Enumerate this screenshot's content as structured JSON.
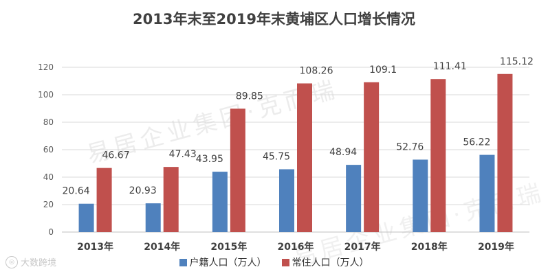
{
  "chart_data": {
    "type": "bar",
    "title": "2013年末至2019年末黄埔区人口增长情况",
    "categories": [
      "2013年",
      "2014年",
      "2015年",
      "2016年",
      "2017年",
      "2018年",
      "2019年"
    ],
    "series": [
      {
        "name": "户籍人口（万人）",
        "values": [
          20.64,
          20.93,
          43.95,
          45.75,
          48.94,
          52.76,
          56.22
        ],
        "color": "#4f81bd"
      },
      {
        "name": "常住人口（万人）",
        "values": [
          46.67,
          47.43,
          89.85,
          108.26,
          109.1,
          111.41,
          115.12
        ],
        "color": "#c0504d"
      }
    ],
    "value_labels": [
      [
        "20.64",
        "20.93",
        "43.95",
        "45.75",
        "48.94",
        "52.76",
        "56.22"
      ],
      [
        "46.67",
        "47.43",
        "89.85",
        "108.26",
        "109.1",
        "111.41",
        "115.12"
      ]
    ],
    "yticks": [
      "0",
      "20",
      "40",
      "60",
      "80",
      "100",
      "120"
    ],
    "ylim": [
      0,
      120
    ],
    "grid": true,
    "legend_position": "bottom"
  },
  "watermark": {
    "text": "易居企业集团·克而瑞",
    "corner_text": "大数跨境"
  }
}
